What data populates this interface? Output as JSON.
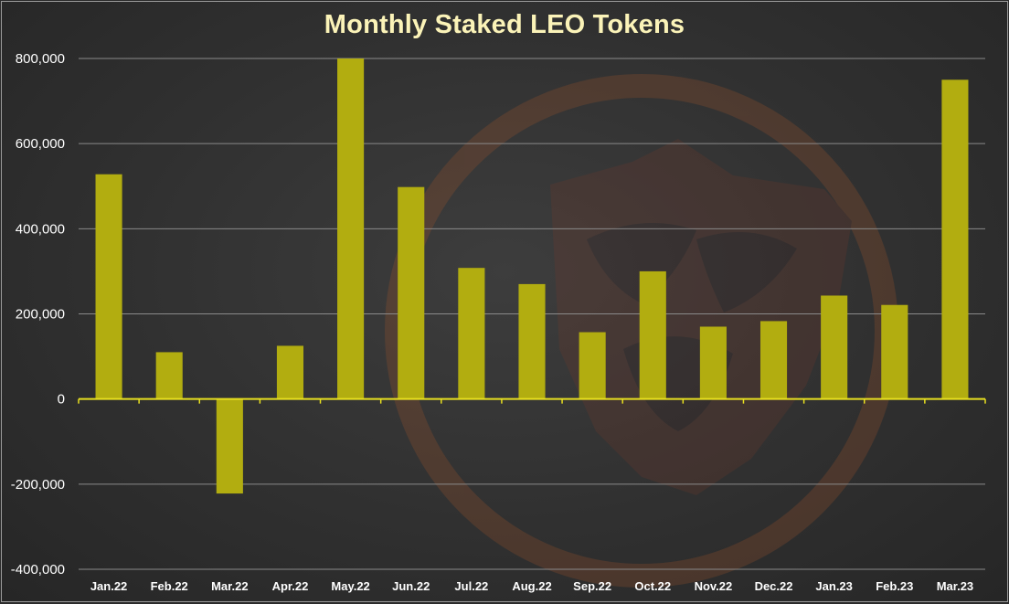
{
  "chart_data": {
    "type": "bar",
    "title": "Monthly Staked LEO Tokens",
    "categories": [
      "Jan.22",
      "Feb.22",
      "Mar.22",
      "Apr.22",
      "May.22",
      "Jun.22",
      "Jul.22",
      "Aug.22",
      "Sep.22",
      "Oct.22",
      "Nov.22",
      "Dec.22",
      "Jan.23",
      "Feb.23",
      "Mar.23"
    ],
    "values": [
      528000,
      110000,
      -222000,
      125000,
      800000,
      498000,
      308000,
      270000,
      157000,
      300000,
      170000,
      183000,
      243000,
      221000,
      750000
    ],
    "ylim": [
      -400000,
      800000
    ],
    "yticks": [
      -400000,
      -200000,
      0,
      200000,
      400000,
      600000,
      800000
    ],
    "ytick_labels": [
      "-400,000",
      "-200,000",
      "0",
      "200,000",
      "400,000",
      "600,000",
      "800,000"
    ],
    "xlabel": "",
    "ylabel": "",
    "grid": true,
    "legend": "none",
    "colors": {
      "bar": "#b2ad10",
      "axis": "#e8e020",
      "grid": "#8a8a8a",
      "title": "#fbf3b8",
      "tick_text": "#ffffff",
      "watermark": "#7a3a2a"
    }
  },
  "watermark": {
    "icon": "leo-lion-shield-icon"
  }
}
